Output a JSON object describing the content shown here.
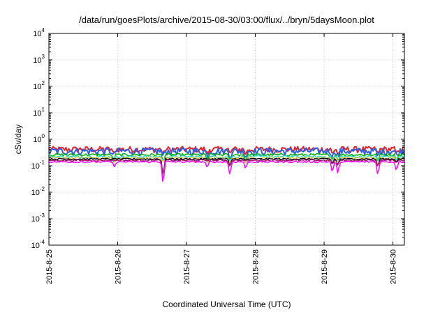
{
  "chart_data": {
    "type": "line",
    "title": "/data/run/goesPlots/archive/2015-08-30/03:00/flux/../bryn/5daysMoon.plot",
    "xlabel": "Coordinated Universal Time (UTC)",
    "ylabel": "cSv/day",
    "yscale": "log",
    "ylim": [
      0.0001,
      10000
    ],
    "xlim": [
      "2015-08-25",
      "2015-08-30 04:00"
    ],
    "grid": true,
    "legend": "none",
    "y_ticks": [
      {
        "base": "10",
        "exp": "-4",
        "value": 0.0001
      },
      {
        "base": "10",
        "exp": "-3",
        "value": 0.001
      },
      {
        "base": "10",
        "exp": "-2",
        "value": 0.01
      },
      {
        "base": "10",
        "exp": "-1",
        "value": 0.1
      },
      {
        "base": "10",
        "exp": "0",
        "value": 1
      },
      {
        "base": "10",
        "exp": "1",
        "value": 10
      },
      {
        "base": "10",
        "exp": "2",
        "value": 100
      },
      {
        "base": "10",
        "exp": "3",
        "value": 1000
      },
      {
        "base": "10",
        "exp": "4",
        "value": 10000
      }
    ],
    "x_ticks": [
      {
        "label": "2015-8-25",
        "day": 25
      },
      {
        "label": "2015-8-26",
        "day": 26
      },
      {
        "label": "2015-8-27",
        "day": 27
      },
      {
        "label": "2015-8-28",
        "day": 28
      },
      {
        "label": "2015-8-29",
        "day": 29
      },
      {
        "label": "2015-8-30",
        "day": 30
      }
    ],
    "series": [
      {
        "color": "#e8202a",
        "level": 0.42,
        "jitter": 0.12,
        "width": 2
      },
      {
        "color": "#2a5fe8",
        "level": 0.36,
        "jitter": 0.14,
        "width": 2
      },
      {
        "color": "#00b000",
        "level": 0.26,
        "jitter": 0.05,
        "width": 1.5
      },
      {
        "color": "#2fd8d8",
        "level": 0.22,
        "jitter": 0.05,
        "width": 1.5
      },
      {
        "color": "#f0c000",
        "level": 0.2,
        "jitter": 0.04,
        "width": 1
      },
      {
        "color": "#000000",
        "level": 0.18,
        "jitter": 0.03,
        "width": 1.5
      },
      {
        "color": "#9a1a6a",
        "level": 0.16,
        "jitter": 0.03,
        "width": 1.5
      },
      {
        "color": "#ff00ff",
        "level": 0.14,
        "jitter": 0.03,
        "width": 1.5
      }
    ],
    "dips": [
      {
        "day": 25.95,
        "value": 0.09
      },
      {
        "day": 26.66,
        "value": 0.016
      },
      {
        "day": 27.3,
        "value": 0.08
      },
      {
        "day": 27.63,
        "value": 0.04
      },
      {
        "day": 27.86,
        "value": 0.07
      },
      {
        "day": 29.12,
        "value": 0.05
      },
      {
        "day": 29.2,
        "value": 0.045
      },
      {
        "day": 29.78,
        "value": 0.04
      },
      {
        "day": 30.05,
        "value": 0.06
      }
    ]
  }
}
